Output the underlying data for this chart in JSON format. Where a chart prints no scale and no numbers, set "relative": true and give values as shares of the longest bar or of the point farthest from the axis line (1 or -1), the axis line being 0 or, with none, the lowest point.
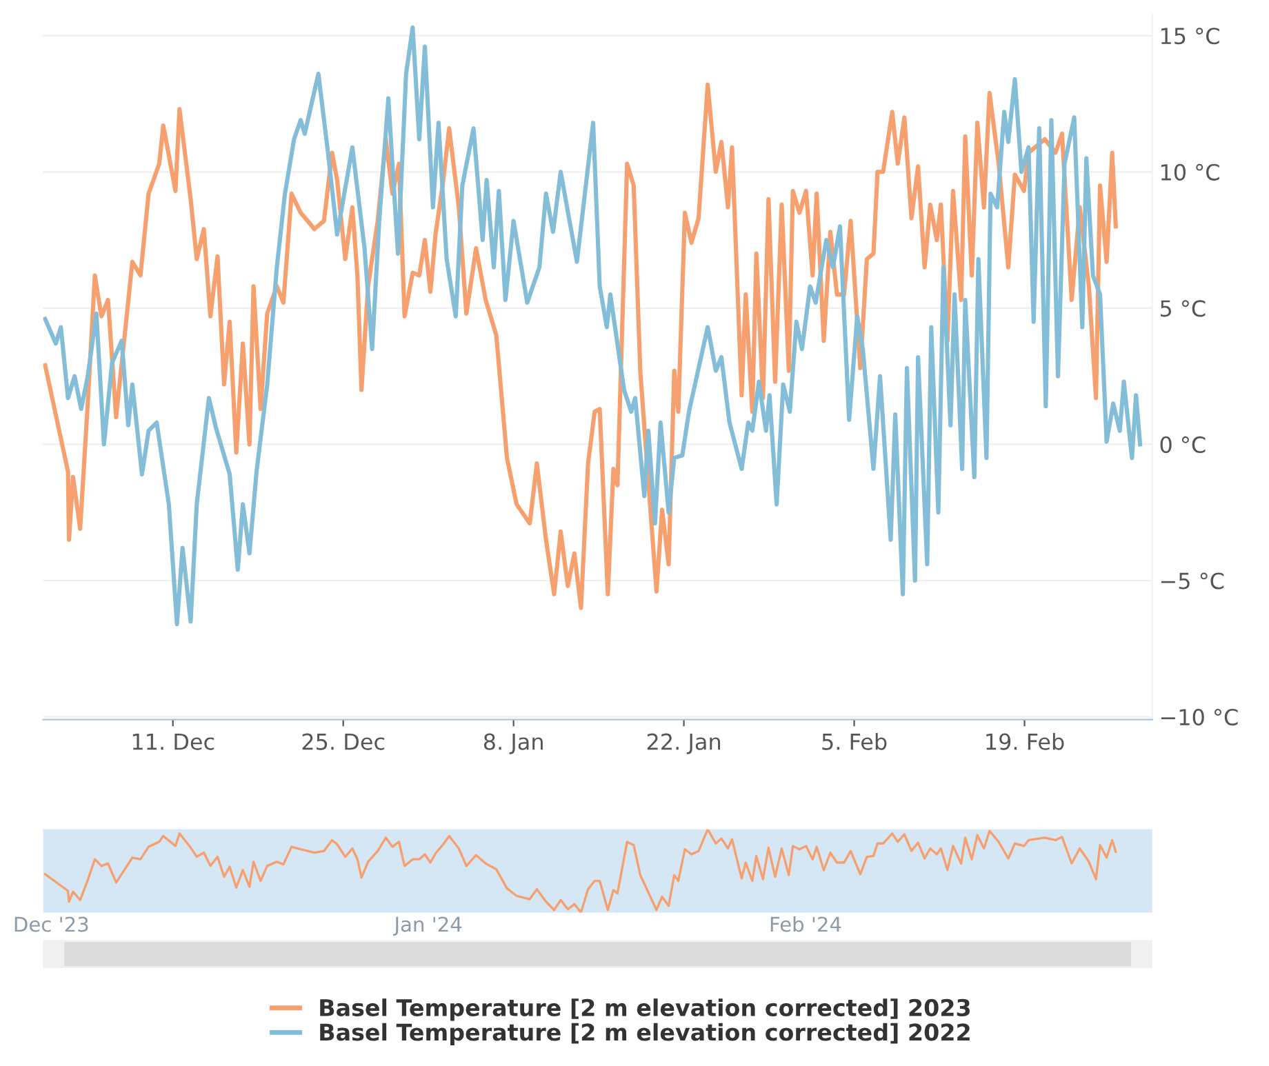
{
  "chart_data": [
    {
      "type": "line",
      "legend": "bottom",
      "grid": "y",
      "marker": "none",
      "line_style": "solid",
      "xlim": [
        "2023-11-30T08:00",
        "2024-02-29T12:00"
      ],
      "xticks": [
        {
          "value": "2023-12-11",
          "label": "11. Dec"
        },
        {
          "value": "2023-12-25",
          "label": "25. Dec"
        },
        {
          "value": "2024-01-08",
          "label": "8. Jan"
        },
        {
          "value": "2024-01-22",
          "label": "22. Jan"
        },
        {
          "value": "2024-02-05",
          "label": "5. Feb"
        },
        {
          "value": "2024-02-19",
          "label": "19. Feb"
        }
      ],
      "ylim": [
        -10.1,
        15.8
      ],
      "yticks": [
        {
          "value": -10,
          "label": "−10 °C"
        },
        {
          "value": -5,
          "label": "−5 °C"
        },
        {
          "value": 0,
          "label": "0 °C"
        },
        {
          "value": 5,
          "label": "5 °C"
        },
        {
          "value": 10,
          "label": "10 °C"
        },
        {
          "value": 15,
          "label": "15 °C"
        }
      ],
      "series": [
        {
          "name": "Basel Temperature [2 m elevation corrected] 2023",
          "color": "#f5a06e",
          "x": [
            "2023-11-30T12:00",
            "2023-12-02T09:00",
            "2023-12-02T11:00",
            "2023-12-02T19:00",
            "2023-12-03T09:00",
            "2023-12-04T00:00",
            "2023-12-04T14:00",
            "2023-12-05T03:00",
            "2023-12-05T16:00",
            "2023-12-06T08:00",
            "2023-12-07T16:00",
            "2023-12-08T08:00",
            "2023-12-09T00:00",
            "2023-12-09T21:00",
            "2023-12-10T05:00",
            "2023-12-11T05:00",
            "2023-12-11T13:00",
            "2023-12-12T11:00",
            "2023-12-12T23:00",
            "2023-12-13T13:00",
            "2023-12-14T02:00",
            "2023-12-14T16:00",
            "2023-12-15T05:00",
            "2023-12-15T16:00",
            "2023-12-16T05:00",
            "2023-12-16T18:00",
            "2023-12-17T07:00",
            "2023-12-17T15:00",
            "2023-12-18T05:00",
            "2023-12-18T18:00",
            "2023-12-19T13:00",
            "2023-12-20T02:00",
            "2023-12-20T18:00",
            "2023-12-21T12:00",
            "2023-12-22T02:00",
            "2023-12-22T15:00",
            "2023-12-23T10:00",
            "2023-12-24T02:00",
            "2023-12-24T12:00",
            "2023-12-25T04:00",
            "2023-12-25T18:00",
            "2023-12-26T04:00",
            "2023-12-26T12:00",
            "2023-12-27T01:00",
            "2023-12-27T20:00",
            "2023-12-28T12:00",
            "2023-12-29T01:00",
            "2023-12-29T14:00",
            "2023-12-30T01:00",
            "2023-12-30T17:00",
            "2023-12-31T06:00",
            "2023-12-31T17:00",
            "2024-01-01T04:00",
            "2024-01-01T14:00",
            "2024-01-02T04:00",
            "2024-01-02T17:00",
            "2024-01-03T12:00",
            "2024-01-04T03:00",
            "2024-01-04T22:00",
            "2024-01-05T17:00",
            "2024-01-06T14:00",
            "2024-01-07T11:00",
            "2024-01-08T06:00",
            "2024-01-09T08:00",
            "2024-01-09T22:00",
            "2024-01-10T16:00",
            "2024-01-11T08:00",
            "2024-01-11T21:00",
            "2024-01-12T11:00",
            "2024-01-13T00:00",
            "2024-01-13T13:00",
            "2024-01-14T03:00",
            "2024-01-14T16:00",
            "2024-01-15T02:00",
            "2024-01-15T18:00",
            "2024-01-16T05:00",
            "2024-01-16T13:00",
            "2024-01-17T08:00",
            "2024-01-17T21:00",
            "2024-01-18T10:00",
            "2024-01-19T02:00",
            "2024-01-19T18:00",
            "2024-01-20T05:00",
            "2024-01-20T18:00",
            "2024-01-21T05:00",
            "2024-01-21T13:00",
            "2024-01-22T02:00",
            "2024-01-22T15:00",
            "2024-01-23T05:00",
            "2024-01-23T23:00",
            "2024-01-24T15:00",
            "2024-01-25T02:00",
            "2024-01-25T15:00",
            "2024-01-25T23:00",
            "2024-01-26T18:00",
            "2024-01-27T02:00",
            "2024-01-27T15:00",
            "2024-01-27T23:00",
            "2024-01-28T12:00",
            "2024-01-28T23:00",
            "2024-01-29T12:00",
            "2024-01-30T01:00",
            "2024-01-30T15:00",
            "2024-01-30T23:00",
            "2024-01-31T12:00",
            "2024-02-01T01:00",
            "2024-02-01T14:00",
            "2024-02-01T22:00",
            "2024-02-02T12:00",
            "2024-02-03T01:00",
            "2024-02-03T14:00",
            "2024-02-04T04:00",
            "2024-02-04T17:00",
            "2024-02-05T12:00",
            "2024-02-06T01:00",
            "2024-02-06T14:00",
            "2024-02-06T22:00",
            "2024-02-07T09:00",
            "2024-02-08T03:00",
            "2024-02-08T14:00",
            "2024-02-09T03:00",
            "2024-02-09T17:00",
            "2024-02-10T06:00",
            "2024-02-10T19:00",
            "2024-02-11T06:00",
            "2024-02-11T19:00",
            "2024-02-12T03:00",
            "2024-02-12T16:00",
            "2024-02-13T03:00",
            "2024-02-13T19:00",
            "2024-02-14T03:00",
            "2024-02-14T16:00",
            "2024-02-15T03:00",
            "2024-02-15T16:00",
            "2024-02-16T03:00",
            "2024-02-16T21:00",
            "2024-02-17T16:00",
            "2024-02-18T05:00",
            "2024-02-18T23:00",
            "2024-02-19T08:00",
            "2024-02-20T16:00",
            "2024-02-21T13:00",
            "2024-02-22T02:00",
            "2024-02-22T21:00",
            "2024-02-23T13:00",
            "2024-02-24T07:00",
            "2024-02-24T21:00",
            "2024-02-25T05:00",
            "2024-02-25T18:00",
            "2024-02-26T05:00",
            "2024-02-26T12:00"
          ],
          "values": [
            2.9,
            -1.0,
            -3.5,
            -1.2,
            -3.1,
            1.5,
            6.2,
            4.7,
            5.3,
            1.0,
            6.7,
            6.2,
            9.2,
            10.3,
            11.7,
            9.3,
            12.3,
            9.0,
            6.8,
            7.9,
            4.7,
            6.9,
            2.2,
            4.5,
            -0.3,
            3.7,
            0.0,
            5.8,
            1.3,
            4.8,
            5.8,
            5.2,
            9.2,
            8.5,
            8.2,
            7.9,
            8.2,
            10.7,
            9.7,
            6.8,
            8.7,
            6.2,
            2.0,
            5.8,
            8.2,
            11.2,
            9.2,
            10.3,
            4.7,
            6.3,
            6.2,
            7.5,
            5.6,
            7.7,
            9.5,
            11.6,
            8.7,
            4.8,
            7.2,
            5.3,
            4.0,
            -0.5,
            -2.2,
            -2.9,
            -0.7,
            -3.5,
            -5.5,
            -3.2,
            -5.2,
            -4.0,
            -6.0,
            -0.7,
            1.2,
            1.3,
            -5.5,
            -0.9,
            -1.5,
            10.3,
            9.5,
            2.7,
            -1.4,
            -5.4,
            -2.4,
            -4.4,
            2.7,
            1.2,
            8.5,
            7.4,
            8.3,
            13.2,
            10.0,
            11.1,
            8.7,
            10.9,
            1.8,
            5.5,
            1.2,
            7.0,
            1.7,
            9.0,
            2.3,
            8.8,
            2.7,
            9.3,
            8.5,
            9.3,
            6.2,
            9.2,
            3.8,
            7.8,
            5.5,
            5.5,
            8.2,
            2.8,
            6.8,
            7.0,
            10.0,
            10.0,
            12.2,
            10.3,
            12.0,
            8.3,
            10.2,
            6.5,
            8.8,
            7.5,
            8.8,
            3.8,
            9.3,
            5.3,
            11.3,
            6.2,
            11.8,
            8.7,
            12.9,
            10.3,
            6.5,
            9.9,
            9.3,
            10.7,
            11.2,
            10.7,
            11.4,
            5.3,
            8.7,
            5.8,
            1.7,
            9.5,
            6.7,
            10.7,
            8.0
          ]
        },
        {
          "name": "Basel Temperature [2 m elevation corrected] 2022",
          "color": "#84bdd8",
          "x": [
            "2023-11-30T12:00",
            "2023-12-01T09:00",
            "2023-12-01T19:00",
            "2023-12-02T09:00",
            "2023-12-02T22:00",
            "2023-12-03T11:00",
            "2023-12-04T00:00",
            "2023-12-04T17:00",
            "2023-12-05T08:00",
            "2023-12-06T00:00",
            "2023-12-06T19:00",
            "2023-12-07T08:00",
            "2023-12-07T16:00",
            "2023-12-08T11:00",
            "2023-12-09T00:00",
            "2023-12-09T16:00",
            "2023-12-10T16:00",
            "2023-12-11T08:00",
            "2023-12-11T19:00",
            "2023-12-12T11:00",
            "2023-12-12T23:00",
            "2023-12-13T23:00",
            "2023-12-14T13:00",
            "2023-12-15T16:00",
            "2023-12-16T08:00",
            "2023-12-16T18:00",
            "2023-12-17T07:00",
            "2023-12-17T21:00",
            "2023-12-18T18:00",
            "2023-12-19T13:00",
            "2023-12-20T05:00",
            "2023-12-20T23:00",
            "2023-12-21T12:00",
            "2023-12-21T20:00",
            "2023-12-22T23:00",
            "2023-12-23T18:00",
            "2023-12-24T12:00",
            "2023-12-25T18:00",
            "2023-12-26T18:00",
            "2023-12-27T09:00",
            "2023-12-27T23:00",
            "2023-12-28T17:00",
            "2023-12-29T12:00",
            "2023-12-30T04:00",
            "2023-12-30T17:00",
            "2023-12-31T06:00",
            "2023-12-31T17:00",
            "2024-01-01T09:00",
            "2024-01-01T20:00",
            "2024-01-02T12:00",
            "2024-01-03T06:00",
            "2024-01-03T19:00",
            "2024-01-04T17:00",
            "2024-01-05T11:00",
            "2024-01-05T19:00",
            "2024-01-06T09:00",
            "2024-01-06T19:00",
            "2024-01-07T08:00",
            "2024-01-08T00:00",
            "2024-01-09T03:00",
            "2024-01-10T03:00",
            "2024-01-10T16:00",
            "2024-01-11T06:00",
            "2024-01-11T21:00",
            "2024-01-13T05:00",
            "2024-01-14T13:00",
            "2024-01-15T02:00",
            "2024-01-15T16:00",
            "2024-01-15T23:00",
            "2024-01-17T02:00",
            "2024-01-17T16:00",
            "2024-01-18T00:00",
            "2024-01-18T18:00",
            "2024-01-19T02:00",
            "2024-01-19T15:00",
            "2024-01-20T02:00",
            "2024-01-20T18:00",
            "2024-01-21T05:00",
            "2024-01-21T21:00",
            "2024-01-22T10:00",
            "2024-01-23T23:00",
            "2024-01-24T15:00",
            "2024-01-25T02:00",
            "2024-01-25T18:00",
            "2024-01-26T18:00",
            "2024-01-27T07:00",
            "2024-01-27T15:00",
            "2024-01-28T04:00",
            "2024-01-28T18:00",
            "2024-01-29T01:00",
            "2024-01-29T15:00",
            "2024-01-30T04:00",
            "2024-01-30T17:00",
            "2024-01-31T06:00",
            "2024-01-31T17:00",
            "2024-02-01T09:00",
            "2024-02-01T20:00",
            "2024-02-02T17:00",
            "2024-02-03T06:00",
            "2024-02-03T20:00",
            "2024-02-04T14:00",
            "2024-02-05T06:00",
            "2024-02-05T17:00",
            "2024-02-06T14:00",
            "2024-02-07T03:00",
            "2024-02-08T00:00",
            "2024-02-08T09:00",
            "2024-02-09T00:00",
            "2024-02-09T08:00",
            "2024-02-10T00:00",
            "2024-02-10T06:00",
            "2024-02-11T00:00",
            "2024-02-11T08:00",
            "2024-02-11T22:00",
            "2024-02-12T08:00",
            "2024-02-12T22:00",
            "2024-02-13T06:00",
            "2024-02-13T21:00",
            "2024-02-14T03:00",
            "2024-02-14T21:00",
            "2024-02-15T05:00",
            "2024-02-15T21:00",
            "2024-02-16T05:00",
            "2024-02-16T18:00",
            "2024-02-17T08:00",
            "2024-02-17T16:00",
            "2024-02-18T05:00",
            "2024-02-18T18:00",
            "2024-02-19T08:00",
            "2024-02-19T18:00",
            "2024-02-20T05:00",
            "2024-02-20T18:00",
            "2024-02-21T05:00",
            "2024-02-21T18:00",
            "2024-02-22T07:00",
            "2024-02-23T02:00",
            "2024-02-23T18:00",
            "2024-02-24T02:00",
            "2024-02-24T15:00",
            "2024-02-25T05:00",
            "2024-02-25T18:00",
            "2024-02-26T07:00",
            "2024-02-26T20:00",
            "2024-02-27T04:00",
            "2024-02-27T20:00",
            "2024-02-28T04:00",
            "2024-02-28T12:00"
          ],
          "values": [
            4.6,
            3.7,
            4.3,
            1.7,
            2.5,
            1.3,
            2.5,
            4.8,
            0.0,
            3.0,
            3.8,
            0.7,
            2.2,
            -1.1,
            0.5,
            0.8,
            -2.2,
            -6.6,
            -3.8,
            -6.5,
            -2.2,
            1.7,
            0.6,
            -1.1,
            -4.6,
            -2.2,
            -4.0,
            -1.0,
            2.2,
            6.5,
            9.2,
            11.2,
            11.9,
            11.4,
            13.6,
            10.7,
            7.7,
            10.9,
            7.2,
            3.5,
            8.2,
            12.7,
            7.0,
            13.6,
            15.3,
            11.2,
            14.6,
            8.7,
            11.8,
            6.8,
            4.7,
            9.5,
            11.6,
            7.5,
            9.7,
            6.5,
            9.3,
            5.3,
            8.2,
            5.2,
            6.5,
            9.2,
            7.8,
            10.0,
            6.7,
            11.8,
            5.8,
            4.3,
            5.5,
            2.0,
            1.2,
            1.7,
            -1.9,
            0.5,
            -2.9,
            0.8,
            -2.5,
            -0.5,
            -0.4,
            1.2,
            4.3,
            2.7,
            3.2,
            0.8,
            -0.9,
            0.8,
            0.5,
            2.3,
            0.5,
            1.8,
            -2.2,
            2.2,
            1.2,
            4.5,
            3.5,
            5.8,
            5.2,
            7.5,
            6.5,
            8.0,
            0.9,
            4.7,
            3.5,
            -0.9,
            2.5,
            -3.5,
            1.1,
            -5.5,
            2.8,
            -5.0,
            3.2,
            -4.4,
            4.3,
            -2.5,
            6.5,
            0.7,
            5.5,
            -0.9,
            5.3,
            -1.2,
            6.8,
            -0.5,
            9.2,
            8.7,
            12.2,
            11.1,
            13.4,
            10.0,
            10.9,
            4.5,
            11.6,
            1.4,
            11.9,
            2.5,
            10.3,
            12.0,
            4.3,
            10.5,
            6.2,
            5.5,
            0.1,
            1.5,
            0.5,
            2.3,
            -0.5,
            1.8,
            0.0
          ]
        }
      ]
    },
    {
      "type": "line",
      "tick_labels": "x",
      "marker": "none",
      "line_style": "solid",
      "xlim": [
        "2023-11-30T08:00",
        "2024-02-29T12:00"
      ],
      "xticks": [
        {
          "value": "2023-12-01",
          "label": "Dec '23"
        },
        {
          "value": "2024-01-01",
          "label": "Jan '24"
        },
        {
          "value": "2024-02-01",
          "label": "Feb '24"
        }
      ],
      "relative": true,
      "series": [
        {
          "color": "#f5a06e",
          "x": [
            "2023-11-30T12:00",
            "2023-12-02T09:00",
            "2023-12-02T11:00",
            "2023-12-02T19:00",
            "2023-12-03T09:00",
            "2023-12-04T00:00",
            "2023-12-04T14:00",
            "2023-12-05T03:00",
            "2023-12-05T16:00",
            "2023-12-06T08:00",
            "2023-12-07T16:00",
            "2023-12-08T08:00",
            "2023-12-09T00:00",
            "2023-12-09T21:00",
            "2023-12-10T05:00",
            "2023-12-11T05:00",
            "2023-12-11T13:00",
            "2023-12-12T11:00",
            "2023-12-12T23:00",
            "2023-12-13T13:00",
            "2023-12-14T02:00",
            "2023-12-14T16:00",
            "2023-12-15T05:00",
            "2023-12-15T16:00",
            "2023-12-16T05:00",
            "2023-12-16T18:00",
            "2023-12-17T07:00",
            "2023-12-17T15:00",
            "2023-12-18T05:00",
            "2023-12-18T18:00",
            "2023-12-19T13:00",
            "2023-12-20T02:00",
            "2023-12-20T18:00",
            "2023-12-21T12:00",
            "2023-12-22T02:00",
            "2023-12-22T15:00",
            "2023-12-23T10:00",
            "2023-12-24T02:00",
            "2023-12-24T12:00",
            "2023-12-25T04:00",
            "2023-12-25T18:00",
            "2023-12-26T04:00",
            "2023-12-26T12:00",
            "2023-12-27T01:00",
            "2023-12-27T20:00",
            "2023-12-28T12:00",
            "2023-12-29T01:00",
            "2023-12-29T14:00",
            "2023-12-30T01:00",
            "2023-12-30T17:00",
            "2023-12-31T06:00",
            "2023-12-31T17:00",
            "2024-01-01T04:00",
            "2024-01-01T14:00",
            "2024-01-02T04:00",
            "2024-01-02T17:00",
            "2024-01-03T12:00",
            "2024-01-04T03:00",
            "2024-01-04T22:00",
            "2024-01-05T17:00",
            "2024-01-06T14:00",
            "2024-01-07T11:00",
            "2024-01-08T06:00",
            "2024-01-09T08:00",
            "2024-01-09T22:00",
            "2024-01-10T16:00",
            "2024-01-11T08:00",
            "2024-01-11T21:00",
            "2024-01-12T11:00",
            "2024-01-13T00:00",
            "2024-01-13T13:00",
            "2024-01-14T03:00",
            "2024-01-14T16:00",
            "2024-01-15T02:00",
            "2024-01-15T18:00",
            "2024-01-16T05:00",
            "2024-01-16T13:00",
            "2024-01-17T08:00",
            "2024-01-17T21:00",
            "2024-01-18T10:00",
            "2024-01-19T02:00",
            "2024-01-19T18:00",
            "2024-01-20T05:00",
            "2024-01-20T18:00",
            "2024-01-21T05:00",
            "2024-01-21T13:00",
            "2024-01-22T02:00",
            "2024-01-22T15:00",
            "2024-01-23T05:00",
            "2024-01-23T23:00",
            "2024-01-24T15:00",
            "2024-01-25T02:00",
            "2024-01-25T15:00",
            "2024-01-25T23:00",
            "2024-01-26T18:00",
            "2024-01-27T02:00",
            "2024-01-27T15:00",
            "2024-01-27T23:00",
            "2024-01-28T12:00",
            "2024-01-28T23:00",
            "2024-01-29T12:00",
            "2024-01-30T01:00",
            "2024-01-30T15:00",
            "2024-01-30T23:00",
            "2024-01-31T12:00",
            "2024-02-01T01:00",
            "2024-02-01T14:00",
            "2024-02-01T22:00",
            "2024-02-02T12:00",
            "2024-02-03T01:00",
            "2024-02-03T14:00",
            "2024-02-04T04:00",
            "2024-02-04T17:00",
            "2024-02-05T12:00",
            "2024-02-06T01:00",
            "2024-02-06T14:00",
            "2024-02-06T22:00",
            "2024-02-07T09:00",
            "2024-02-08T03:00",
            "2024-02-08T14:00",
            "2024-02-09T03:00",
            "2024-02-09T17:00",
            "2024-02-10T06:00",
            "2024-02-10T19:00",
            "2024-02-11T06:00",
            "2024-02-11T19:00",
            "2024-02-12T03:00",
            "2024-02-12T16:00",
            "2024-02-13T03:00",
            "2024-02-13T19:00",
            "2024-02-14T03:00",
            "2024-02-14T16:00",
            "2024-02-15T03:00",
            "2024-02-15T16:00",
            "2024-02-16T03:00",
            "2024-02-16T21:00",
            "2024-02-17T16:00",
            "2024-02-18T05:00",
            "2024-02-18T23:00",
            "2024-02-19T08:00",
            "2024-02-20T16:00",
            "2024-02-21T13:00",
            "2024-02-22T02:00",
            "2024-02-22T21:00",
            "2024-02-23T13:00",
            "2024-02-24T07:00",
            "2024-02-24T21:00",
            "2024-02-25T05:00",
            "2024-02-25T18:00",
            "2024-02-26T05:00",
            "2024-02-26T12:00"
          ],
          "values": [
            0.46,
            0.26,
            0.13,
            0.25,
            0.15,
            0.39,
            0.64,
            0.56,
            0.59,
            0.36,
            0.66,
            0.64,
            0.79,
            0.85,
            0.92,
            0.8,
            0.95,
            0.78,
            0.67,
            0.72,
            0.56,
            0.67,
            0.43,
            0.55,
            0.3,
            0.51,
            0.31,
            0.61,
            0.38,
            0.56,
            0.61,
            0.58,
            0.79,
            0.76,
            0.74,
            0.72,
            0.74,
            0.87,
            0.82,
            0.67,
            0.77,
            0.64,
            0.42,
            0.61,
            0.74,
            0.9,
            0.79,
            0.85,
            0.56,
            0.64,
            0.64,
            0.7,
            0.6,
            0.71,
            0.81,
            0.92,
            0.77,
            0.56,
            0.69,
            0.59,
            0.52,
            0.29,
            0.2,
            0.16,
            0.28,
            0.13,
            0.03,
            0.15,
            0.04,
            0.1,
            0,
            0.28,
            0.38,
            0.38,
            0.03,
            0.27,
            0.23,
            0.85,
            0.81,
            0.45,
            0.24,
            0.03,
            0.19,
            0.08,
            0.45,
            0.38,
            0.76,
            0.7,
            0.74,
            1,
            0.83,
            0.89,
            0.77,
            0.88,
            0.41,
            0.6,
            0.38,
            0.68,
            0.4,
            0.78,
            0.43,
            0.77,
            0.45,
            0.8,
            0.76,
            0.8,
            0.64,
            0.79,
            0.51,
            0.72,
            0.6,
            0.6,
            0.74,
            0.46,
            0.67,
            0.68,
            0.83,
            0.83,
            0.95,
            0.85,
            0.94,
            0.74,
            0.84,
            0.65,
            0.77,
            0.7,
            0.77,
            0.51,
            0.8,
            0.59,
            0.9,
            0.64,
            0.93,
            0.77,
            0.98,
            0.85,
            0.65,
            0.83,
            0.8,
            0.87,
            0.9,
            0.87,
            0.91,
            0.59,
            0.77,
            0.61,
            0.4,
            0.81,
            0.66,
            0.87,
            0.73
          ]
        }
      ]
    }
  ]
}
